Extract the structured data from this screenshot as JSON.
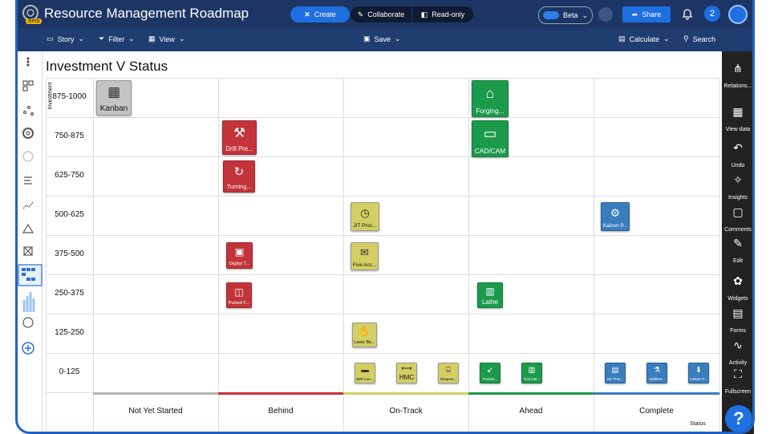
{
  "app": {
    "title": "Resource Management Roadmap",
    "badge": "Beta",
    "buttons": {
      "create": "Create",
      "collaborate": "Collaborate",
      "read_only": "Read-only",
      "beta": "Beta",
      "share": "Share",
      "notifications": "2"
    }
  },
  "toolbar": {
    "story": "Story",
    "filter": "Filter",
    "view": "View",
    "save": "Save",
    "calculate": "Calculate",
    "search": "Search"
  },
  "right_sidebar": [
    "Relations...",
    "View data",
    "Undo",
    "Insights",
    "Comments",
    "Edit",
    "Widgets",
    "Forms",
    "Activity",
    "Fullscreen"
  ],
  "help": "?",
  "matrix": {
    "title": "Investment V Status",
    "y_label": "Investment",
    "x_label": "Status",
    "columns": [
      {
        "name": "Not Yet Started",
        "color": "#b5b5b5"
      },
      {
        "name": "Behind",
        "color": "#c3343a"
      },
      {
        "name": "On-Track",
        "color": "#d3cf63"
      },
      {
        "name": "Ahead",
        "color": "#1c9a4b"
      },
      {
        "name": "Complete",
        "color": "#3a7dbd"
      }
    ],
    "rows": [
      {
        "label": "875-1000",
        "cells": [
          [
            {
              "label": "Kanban",
              "color": "#c4c4c4"
            }
          ],
          [],
          [],
          [
            {
              "label": "Forging...",
              "color": "#1c9a4b"
            }
          ],
          []
        ]
      },
      {
        "label": "750-875",
        "cells": [
          [],
          [
            {
              "label": "Drill Pre...",
              "color": "#c3343a"
            }
          ],
          [],
          [
            {
              "label": "CAD/CAM",
              "color": "#1c9a4b"
            }
          ],
          []
        ]
      },
      {
        "label": "625-750",
        "cells": [
          [],
          [
            {
              "label": "Turning...",
              "color": "#c3343a"
            }
          ],
          [],
          [],
          []
        ]
      },
      {
        "label": "500-625",
        "cells": [
          [],
          [],
          [
            {
              "label": "JIT Proc...",
              "color": "#d3cf63"
            }
          ],
          [],
          [
            {
              "label": "Kaizen P...",
              "color": "#3a7dbd"
            }
          ]
        ]
      },
      {
        "label": "375-500",
        "cells": [
          [],
          [
            {
              "label": "Digital T...",
              "color": "#c3343a"
            }
          ],
          [
            {
              "label": "Five Acc...",
              "color": "#d3cf63"
            }
          ],
          [],
          []
        ]
      },
      {
        "label": "250-375",
        "cells": [
          [],
          [
            {
              "label": "Pulsed F...",
              "color": "#c3343a"
            }
          ],
          [],
          [
            {
              "label": "Lathe",
              "color": "#1c9a4b"
            }
          ],
          []
        ]
      },
      {
        "label": "125-250",
        "cells": [
          [],
          [],
          [
            {
              "label": "Laser Be...",
              "color": "#d3cf63"
            }
          ],
          [],
          []
        ]
      },
      {
        "label": "0-125",
        "cells": [
          [],
          [],
          [
            {
              "label": "Belt Con...",
              "color": "#d3cf63"
            },
            {
              "label": "HMC",
              "color": "#d3cf63"
            },
            {
              "label": "Shapers...",
              "color": "#d3cf63"
            }
          ],
          [
            {
              "label": "Friction...",
              "color": "#1c9a4b"
            },
            {
              "label": "Tool Dat...",
              "color": "#1c9a4b"
            }
          ],
          [
            {
              "label": "SS Proc...",
              "color": "#3a7dbd"
            },
            {
              "label": "Additive...",
              "color": "#3a7dbd"
            },
            {
              "label": "Carbon F...",
              "color": "#3a7dbd"
            }
          ]
        ]
      }
    ]
  }
}
